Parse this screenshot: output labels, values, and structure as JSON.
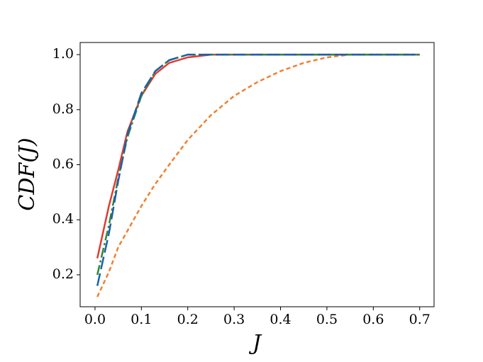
{
  "chart_data": {
    "type": "line",
    "x_label": "J",
    "y_label": "CDF(J)",
    "x": [
      0.005,
      0.03,
      0.05,
      0.07,
      0.1,
      0.13,
      0.16,
      0.2,
      0.25,
      0.3,
      0.35,
      0.4,
      0.45,
      0.5,
      0.55,
      0.6,
      0.7
    ],
    "series": [
      {
        "color": "#e03c31",
        "linestyle": "solid",
        "values": [
          0.26,
          0.45,
          0.58,
          0.72,
          0.85,
          0.93,
          0.97,
          0.99,
          1.0,
          1.0,
          1.0,
          1.0,
          1.0,
          1.0,
          1.0,
          1.0,
          1.0
        ]
      },
      {
        "color": "#f08030",
        "linestyle": "dashed",
        "values": [
          0.12,
          0.21,
          0.3,
          0.36,
          0.45,
          0.53,
          0.6,
          0.69,
          0.78,
          0.85,
          0.9,
          0.94,
          0.97,
          0.99,
          1.0,
          1.0,
          1.0
        ]
      },
      {
        "color": "#2a8a3a",
        "linestyle": "dashdot",
        "values": [
          0.2,
          0.38,
          0.55,
          0.7,
          0.85,
          0.94,
          0.98,
          1.0,
          1.0,
          1.0,
          1.0,
          1.0,
          1.0,
          1.0,
          1.0,
          1.0,
          1.0
        ]
      },
      {
        "color": "#1f5fa8",
        "linestyle": "longdash",
        "values": [
          0.16,
          0.35,
          0.54,
          0.71,
          0.86,
          0.94,
          0.98,
          1.0,
          1.0,
          1.0,
          1.0,
          1.0,
          1.0,
          1.0,
          1.0,
          1.0,
          1.0
        ]
      }
    ],
    "xlim": [
      -0.032,
      0.731
    ],
    "ylim": [
      0.084,
      1.044
    ],
    "xticks": [
      {
        "value": 0,
        "label": "0.0"
      },
      0.1,
      0.2,
      0.3,
      0.4,
      0.5,
      0.6,
      0.7
    ],
    "yticks": [
      0.2,
      0.4,
      0.6,
      0.8,
      {
        "value": 1,
        "label": "1.0"
      }
    ],
    "grid": false
  }
}
